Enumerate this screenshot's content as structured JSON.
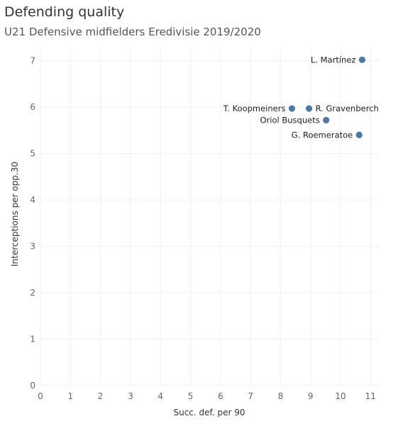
{
  "title": "Defending quality",
  "subtitle": "U21 Defensive midfielders Eredivisie 2019/2020",
  "chart_data": {
    "type": "scatter",
    "title": "Defending quality",
    "subtitle": "U21 Defensive midfielders Eredivisie 2019/2020",
    "xlabel": "Succ. def. per 90",
    "ylabel": "Interceptions per opp.30",
    "xlim": [
      0,
      11.3
    ],
    "ylim": [
      0,
      7.3
    ],
    "x_ticks": [
      0,
      1,
      2,
      3,
      4,
      5,
      6,
      7,
      8,
      9,
      10,
      11
    ],
    "y_ticks": [
      0,
      1,
      2,
      3,
      4,
      5,
      6,
      7
    ],
    "grid": true,
    "point_color": "#4e79a7",
    "points": [
      {
        "label": "L. Martínez",
        "x": 10.72,
        "y": 7.02,
        "label_side": "left"
      },
      {
        "label": "T. Koopmeiners",
        "x": 8.38,
        "y": 5.97,
        "label_side": "left"
      },
      {
        "label": "R. Gravenberch",
        "x": 8.95,
        "y": 5.97,
        "label_side": "right"
      },
      {
        "label": "Oriol Busquets",
        "x": 9.52,
        "y": 5.72,
        "label_side": "left"
      },
      {
        "label": "G. Roemeratoe",
        "x": 10.62,
        "y": 5.4,
        "label_side": "left"
      }
    ]
  }
}
